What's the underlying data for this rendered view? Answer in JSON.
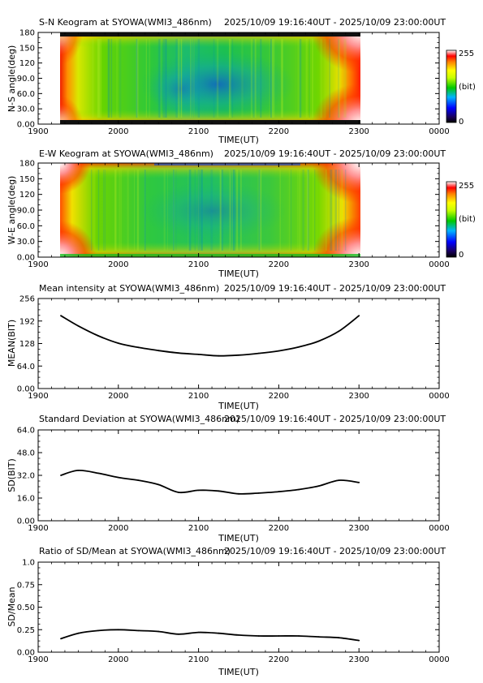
{
  "chart_data": [
    {
      "type": "heatmap",
      "title": "S-N Keogram at SYOWA(WMI3_486nm)",
      "period": "2025/10/09 19:16:40UT - 2025/10/09 23:00:00UT",
      "ylabel": "N-S angle(deg)",
      "xlabel": "TIME(UT)",
      "ylim": [
        0,
        180
      ],
      "yticks": [
        "0.00",
        "30.0",
        "60.0",
        "90.0",
        "120",
        "150",
        "180"
      ],
      "xticks": [
        "1900",
        "2000",
        "2100",
        "2200",
        "2300",
        "0000"
      ],
      "colorbar": {
        "max": "255",
        "unit": "(bit)",
        "min": "0"
      }
    },
    {
      "type": "heatmap",
      "title": "E-W Keogram at SYOWA(WMI3_486nm)",
      "period": "2025/10/09 19:16:40UT - 2025/10/09 23:00:00UT",
      "ylabel": "W-E angle(deg)",
      "xlabel": "TIME(UT)",
      "ylim": [
        0,
        180
      ],
      "yticks": [
        "0.00",
        "30.0",
        "60.0",
        "90.0",
        "120",
        "150",
        "180"
      ],
      "xticks": [
        "1900",
        "2000",
        "2100",
        "2200",
        "2300",
        "0000"
      ],
      "colorbar": {
        "max": "255",
        "unit": "(bit)",
        "min": "0"
      }
    },
    {
      "type": "line",
      "title": "Mean intensity at SYOWA(WMI3_486nm)",
      "period": "2025/10/09 19:16:40UT - 2025/10/09 23:00:00UT",
      "ylabel": "MEAN(BIT)",
      "xlabel": "TIME(UT)",
      "ylim": [
        0,
        256
      ],
      "yticks": [
        "0.00",
        "64.0",
        "128",
        "192",
        "256"
      ],
      "xticks": [
        "1900",
        "2000",
        "2100",
        "2200",
        "2300",
        "0000"
      ],
      "x": [
        "19:17",
        "19:30",
        "19:45",
        "20:00",
        "20:15",
        "20:30",
        "20:45",
        "21:00",
        "21:15",
        "21:30",
        "21:45",
        "22:00",
        "22:15",
        "22:30",
        "22:45",
        "23:00"
      ],
      "values": [
        207,
        178,
        150,
        129,
        117,
        108,
        101,
        97,
        93,
        95,
        100,
        107,
        118,
        135,
        163,
        207
      ]
    },
    {
      "type": "line",
      "title": "Standard Deviation at SYOWA(WMI3_486nm)",
      "period": "2025/10/09 19:16:40UT - 2025/10/09 23:00:00UT",
      "ylabel": "SD(BIT)",
      "xlabel": "TIME(UT)",
      "ylim": [
        0,
        64
      ],
      "yticks": [
        "0.00",
        "16.0",
        "32.0",
        "48.0",
        "64.0"
      ],
      "xticks": [
        "1900",
        "2000",
        "2100",
        "2200",
        "2300",
        "0000"
      ],
      "x": [
        "19:17",
        "19:30",
        "19:45",
        "20:00",
        "20:15",
        "20:30",
        "20:45",
        "21:00",
        "21:15",
        "21:30",
        "21:45",
        "22:00",
        "22:15",
        "22:30",
        "22:45",
        "23:00"
      ],
      "values": [
        32,
        35.5,
        33.5,
        30.5,
        28.5,
        25.5,
        20,
        21.5,
        21,
        19,
        19.5,
        20.5,
        22,
        24.5,
        28.5,
        27
      ]
    },
    {
      "type": "line",
      "title": "Ratio of SD/Mean at SYOWA(WMI3_486nm)",
      "period": "2025/10/09 19:16:40UT - 2025/10/09 23:00:00UT",
      "ylabel": "SD/Mean",
      "xlabel": "TIME(UT)",
      "ylim": [
        0,
        1
      ],
      "yticks": [
        "0.00",
        "0.25",
        "0.50",
        "0.75",
        "1.0"
      ],
      "xticks": [
        "1900",
        "2000",
        "2100",
        "2200",
        "2300",
        "0000"
      ],
      "x": [
        "19:17",
        "19:30",
        "19:45",
        "20:00",
        "20:15",
        "20:30",
        "20:45",
        "21:00",
        "21:15",
        "21:30",
        "21:45",
        "22:00",
        "22:15",
        "22:30",
        "22:45",
        "23:00"
      ],
      "values": [
        0.15,
        0.21,
        0.24,
        0.25,
        0.24,
        0.23,
        0.2,
        0.22,
        0.21,
        0.19,
        0.18,
        0.18,
        0.18,
        0.17,
        0.16,
        0.13
      ]
    }
  ]
}
